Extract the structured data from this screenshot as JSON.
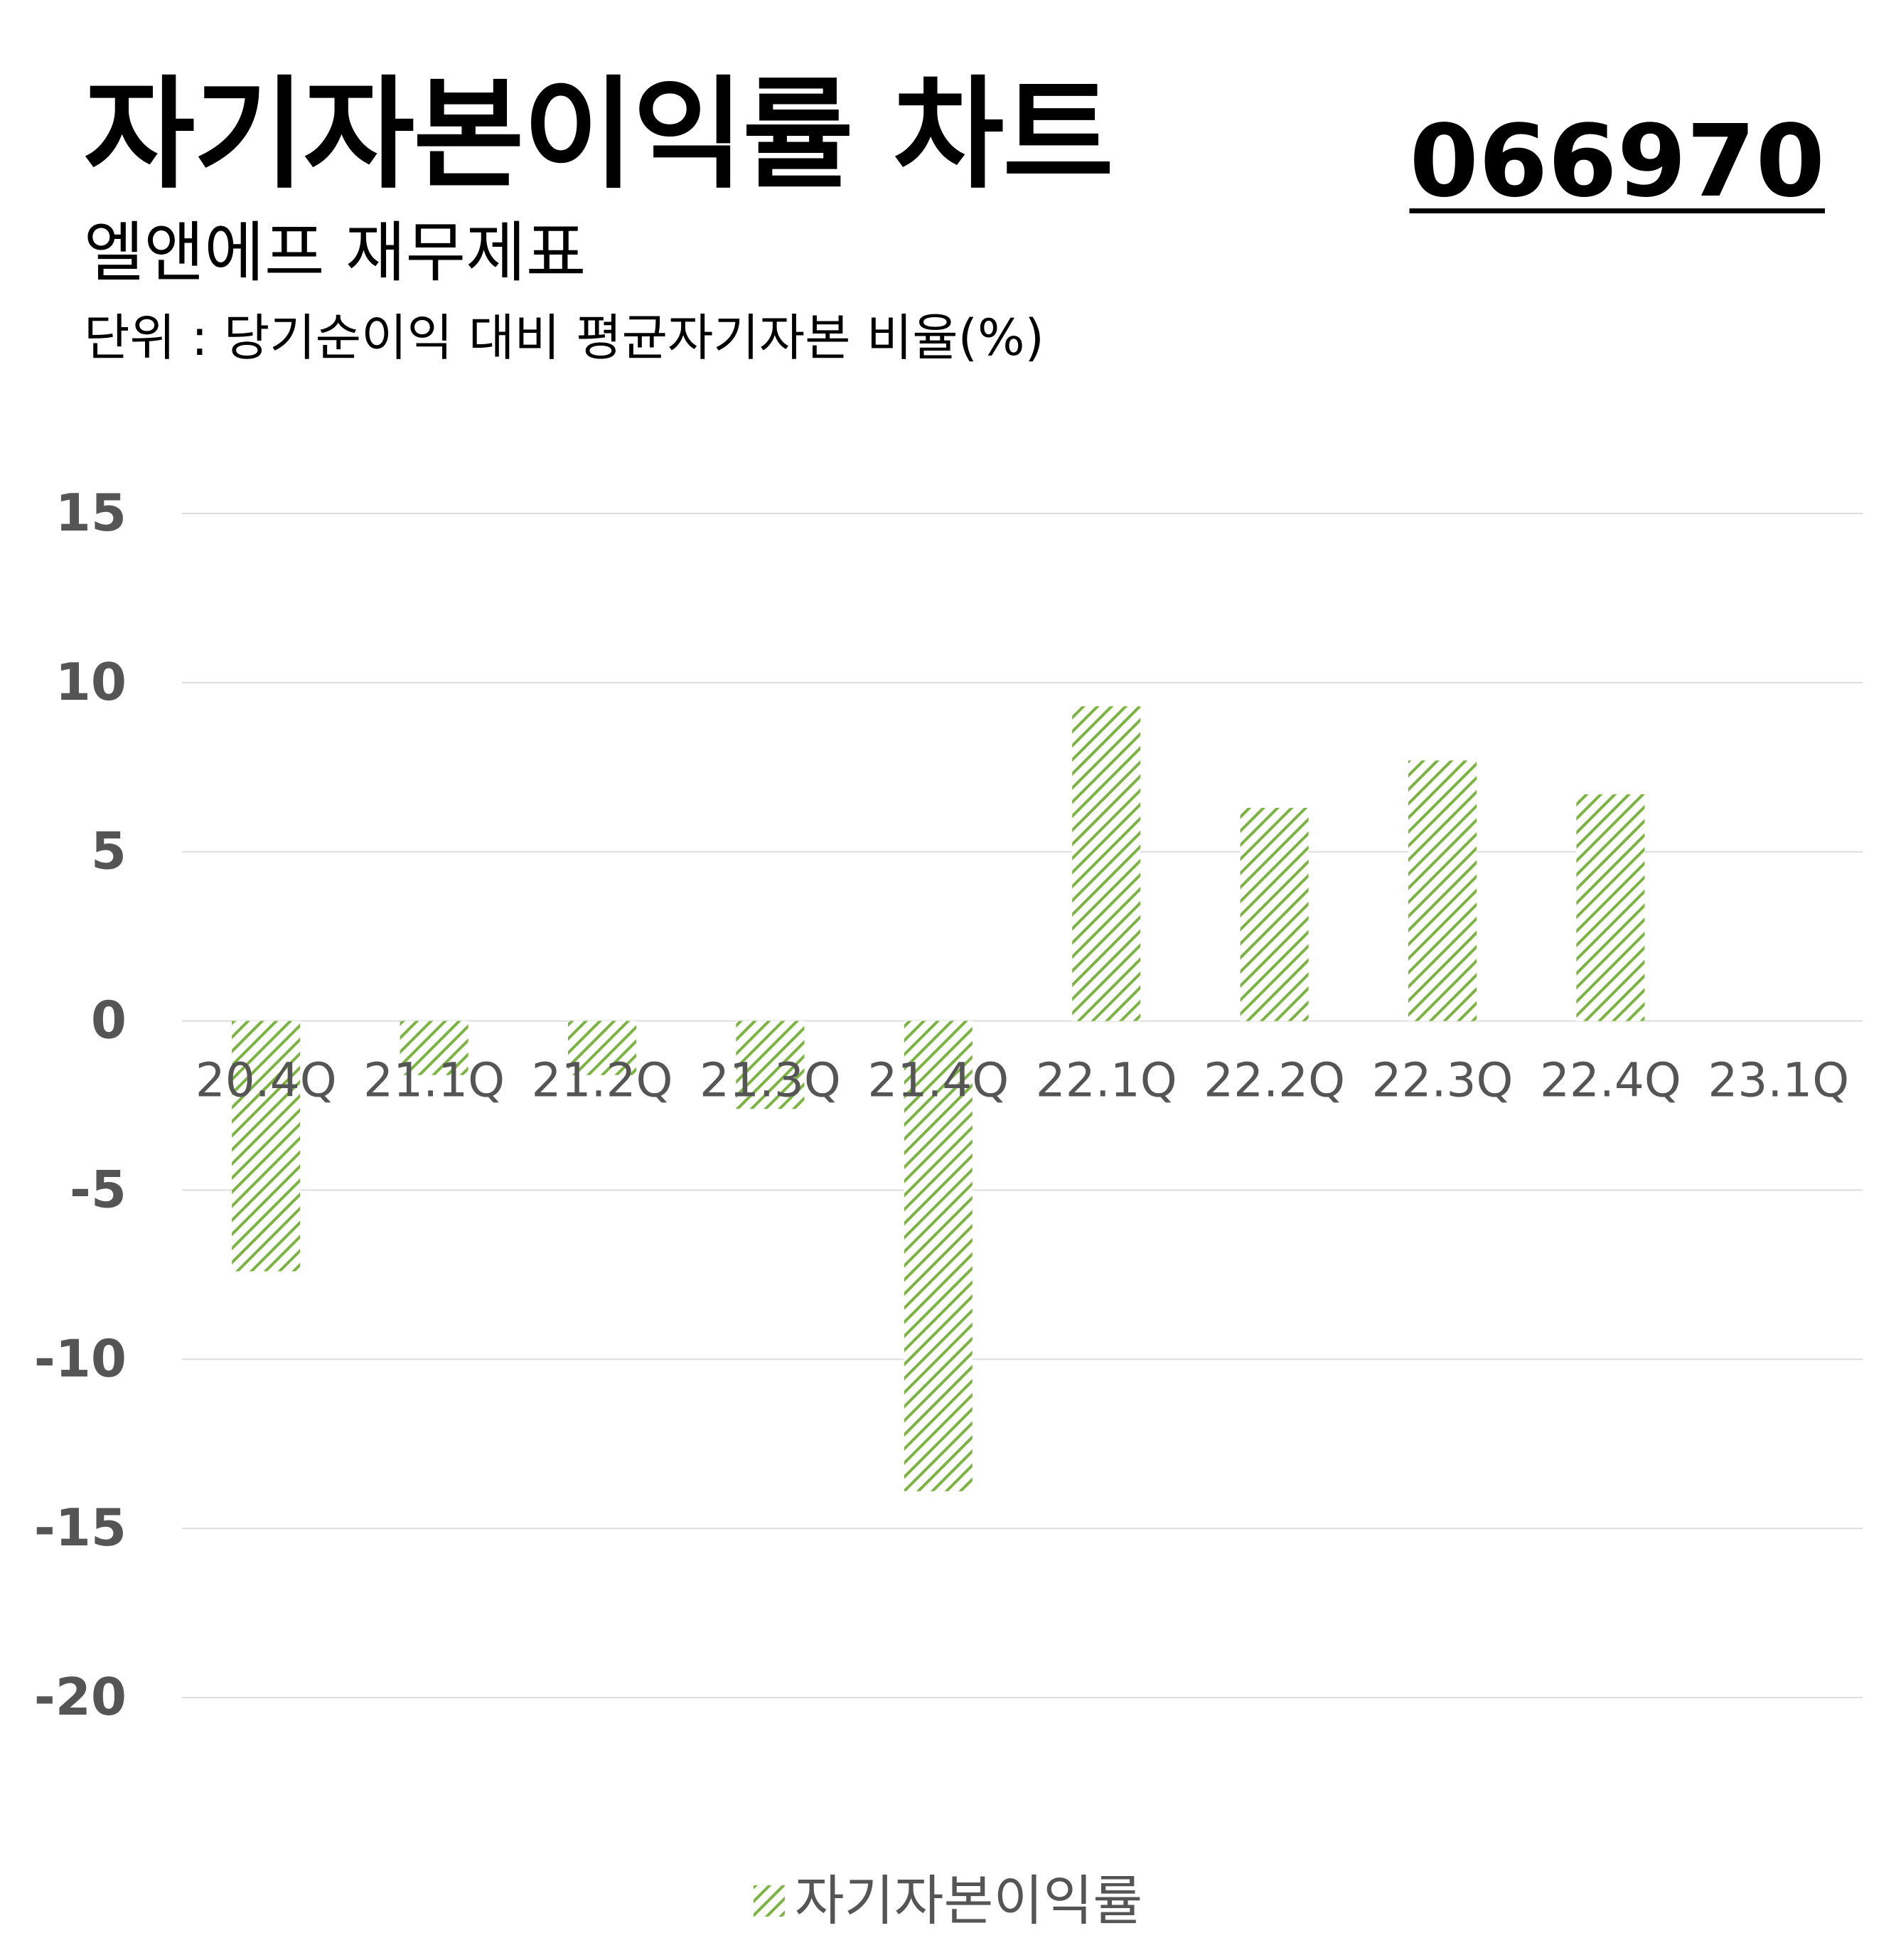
{
  "header": {
    "title": "자기자본이익률 차트",
    "ticker": "066970",
    "subtitle": "엘앤에프 재무제표",
    "unit": "단위 : 당기순이익 대비 평균자기자본 비율(%)"
  },
  "colors": {
    "bar": "#7cb342",
    "grid": "#dddddd",
    "tick_label": "#555555",
    "category_label": "#555555"
  },
  "chart_data": {
    "type": "bar",
    "categories": [
      "20.4Q",
      "21.1Q",
      "21.2Q",
      "21.3Q",
      "21.4Q",
      "22.1Q",
      "22.2Q",
      "22.3Q",
      "22.4Q",
      "23.1Q"
    ],
    "series": [
      {
        "name": "자기자본이익률",
        "values": [
          -7.4,
          -1.6,
          -1.6,
          -2.6,
          -13.9,
          9.3,
          6.3,
          7.7,
          6.7,
          null
        ],
        "pattern": "diagonal-hatch"
      }
    ],
    "ylim": [
      -20,
      15
    ],
    "yticks": [
      15,
      10,
      5,
      0,
      -5,
      -10,
      -15,
      -20
    ],
    "ytick_labels": [
      "15",
      "10",
      "5",
      "0",
      "-5",
      "-10",
      "-15",
      "-20"
    ],
    "grid": true,
    "legend": "bottom-center"
  }
}
